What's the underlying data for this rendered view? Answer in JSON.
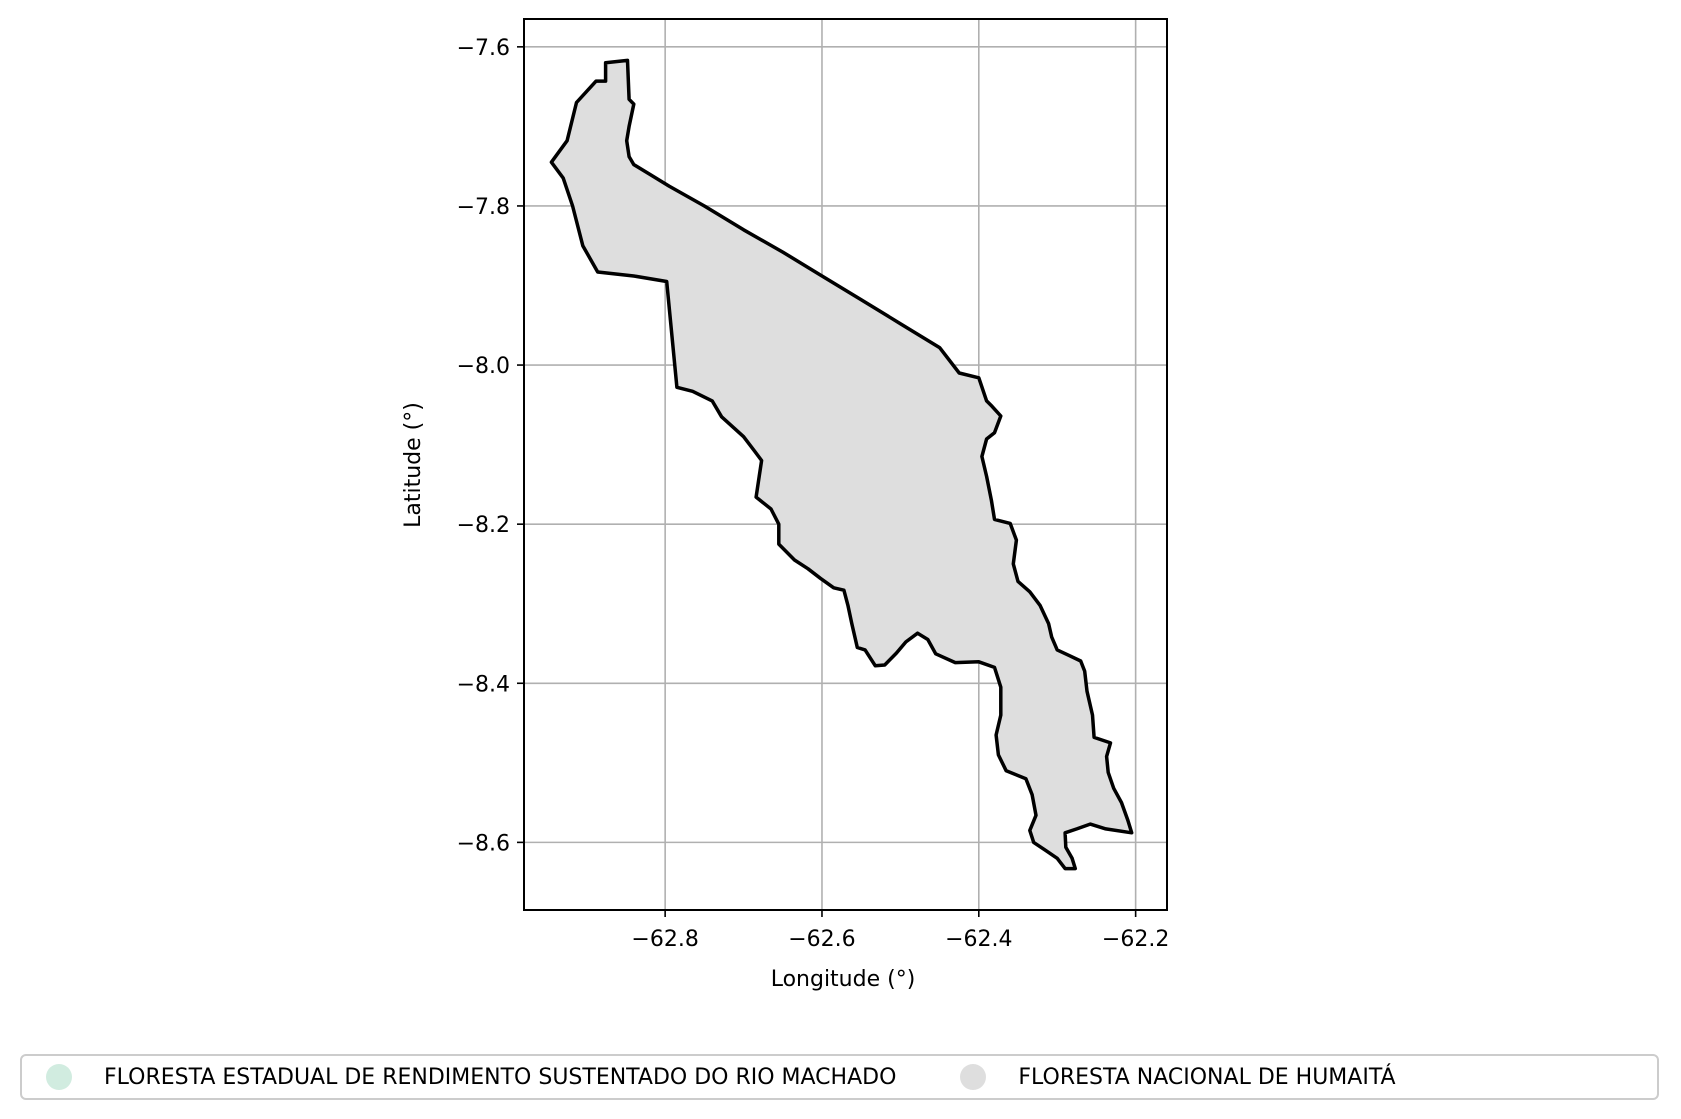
{
  "chart_data": {
    "type": "map",
    "title": "",
    "xlabel": "Longitude (°)",
    "ylabel": "Latitude (°)",
    "xlim": [
      -62.98,
      -62.16
    ],
    "ylim": [
      -8.685,
      -7.565
    ],
    "x_ticks": [
      -62.8,
      -62.6,
      -62.4,
      -62.2
    ],
    "y_ticks": [
      -7.6,
      -7.8,
      -8.0,
      -8.2,
      -8.4,
      -8.6
    ],
    "x_tick_labels": [
      "−62.8",
      "−62.6",
      "−62.4",
      "−62.2"
    ],
    "y_tick_labels": [
      "−7.6",
      "−7.8",
      "−8.0",
      "−8.2",
      "−8.4",
      "−8.6"
    ],
    "grid": true,
    "legend_position": "bottom",
    "colors": {
      "boundary": "#000000",
      "grid": "#b0b0b0"
    },
    "series": [
      {
        "name": "FLORESTA ESTADUAL DE RENDIMENTO SUSTENTADO DO RIO MACHADO",
        "color": "#d1ece0"
      },
      {
        "name": "FLORESTA NACIONAL DE HUMAITÁ",
        "color": "#dedede",
        "polygon": [
          [
            -62.876,
            -7.62
          ],
          [
            -62.848,
            -7.617
          ],
          [
            -62.846,
            -7.666
          ],
          [
            -62.84,
            -7.672
          ],
          [
            -62.846,
            -7.7
          ],
          [
            -62.849,
            -7.718
          ],
          [
            -62.846,
            -7.738
          ],
          [
            -62.84,
            -7.748
          ],
          [
            -62.82,
            -7.76
          ],
          [
            -62.795,
            -7.775
          ],
          [
            -62.75,
            -7.8
          ],
          [
            -62.7,
            -7.83
          ],
          [
            -62.65,
            -7.858
          ],
          [
            -62.6,
            -7.888
          ],
          [
            -62.55,
            -7.918
          ],
          [
            -62.5,
            -7.948
          ],
          [
            -62.45,
            -7.978
          ],
          [
            -62.425,
            -8.01
          ],
          [
            -62.4,
            -8.016
          ],
          [
            -62.39,
            -8.045
          ],
          [
            -62.383,
            -8.052
          ],
          [
            -62.372,
            -8.064
          ],
          [
            -62.38,
            -8.085
          ],
          [
            -62.39,
            -8.093
          ],
          [
            -62.396,
            -8.115
          ],
          [
            -62.39,
            -8.14
          ],
          [
            -62.384,
            -8.17
          ],
          [
            -62.38,
            -8.194
          ],
          [
            -62.36,
            -8.199
          ],
          [
            -62.352,
            -8.22
          ],
          [
            -62.356,
            -8.25
          ],
          [
            -62.35,
            -8.272
          ],
          [
            -62.335,
            -8.285
          ],
          [
            -62.322,
            -8.302
          ],
          [
            -62.311,
            -8.325
          ],
          [
            -62.307,
            -8.342
          ],
          [
            -62.3,
            -8.358
          ],
          [
            -62.285,
            -8.365
          ],
          [
            -62.27,
            -8.372
          ],
          [
            -62.265,
            -8.385
          ],
          [
            -62.262,
            -8.41
          ],
          [
            -62.255,
            -8.44
          ],
          [
            -62.253,
            -8.468
          ],
          [
            -62.232,
            -8.475
          ],
          [
            -62.237,
            -8.492
          ],
          [
            -62.235,
            -8.512
          ],
          [
            -62.228,
            -8.532
          ],
          [
            -62.218,
            -8.55
          ],
          [
            -62.21,
            -8.572
          ],
          [
            -62.205,
            -8.588
          ],
          [
            -62.238,
            -8.583
          ],
          [
            -62.258,
            -8.577
          ],
          [
            -62.275,
            -8.583
          ],
          [
            -62.29,
            -8.588
          ],
          [
            -62.289,
            -8.606
          ],
          [
            -62.281,
            -8.62
          ],
          [
            -62.277,
            -8.633
          ],
          [
            -62.29,
            -8.633
          ],
          [
            -62.3,
            -8.62
          ],
          [
            -62.315,
            -8.61
          ],
          [
            -62.33,
            -8.6
          ],
          [
            -62.335,
            -8.585
          ],
          [
            -62.327,
            -8.566
          ],
          [
            -62.332,
            -8.54
          ],
          [
            -62.34,
            -8.52
          ],
          [
            -62.365,
            -8.51
          ],
          [
            -62.375,
            -8.49
          ],
          [
            -62.378,
            -8.465
          ],
          [
            -62.372,
            -8.44
          ],
          [
            -62.372,
            -8.405
          ],
          [
            -62.38,
            -8.38
          ],
          [
            -62.4,
            -8.373
          ],
          [
            -62.43,
            -8.374
          ],
          [
            -62.455,
            -8.363
          ],
          [
            -62.465,
            -8.345
          ],
          [
            -62.478,
            -8.337
          ],
          [
            -62.493,
            -8.348
          ],
          [
            -62.505,
            -8.362
          ],
          [
            -62.52,
            -8.377
          ],
          [
            -62.532,
            -8.378
          ],
          [
            -62.545,
            -8.358
          ],
          [
            -62.555,
            -8.355
          ],
          [
            -62.562,
            -8.325
          ],
          [
            -62.567,
            -8.302
          ],
          [
            -62.572,
            -8.283
          ],
          [
            -62.585,
            -8.28
          ],
          [
            -62.602,
            -8.268
          ],
          [
            -62.618,
            -8.256
          ],
          [
            -62.635,
            -8.245
          ],
          [
            -62.655,
            -8.225
          ],
          [
            -62.655,
            -8.2
          ],
          [
            -62.665,
            -8.181
          ],
          [
            -62.684,
            -8.166
          ],
          [
            -62.68,
            -8.14
          ],
          [
            -62.677,
            -8.12
          ],
          [
            -62.686,
            -8.108
          ],
          [
            -62.7,
            -8.09
          ],
          [
            -62.728,
            -8.065
          ],
          [
            -62.74,
            -8.045
          ],
          [
            -62.765,
            -8.033
          ],
          [
            -62.785,
            -8.028
          ],
          [
            -62.798,
            -7.895
          ],
          [
            -62.84,
            -7.888
          ],
          [
            -62.886,
            -7.883
          ],
          [
            -62.905,
            -7.85
          ],
          [
            -62.918,
            -7.8
          ],
          [
            -62.93,
            -7.765
          ],
          [
            -62.945,
            -7.745
          ],
          [
            -62.925,
            -7.718
          ],
          [
            -62.913,
            -7.67
          ],
          [
            -62.888,
            -7.643
          ],
          [
            -62.876,
            -7.643
          ]
        ]
      }
    ]
  }
}
